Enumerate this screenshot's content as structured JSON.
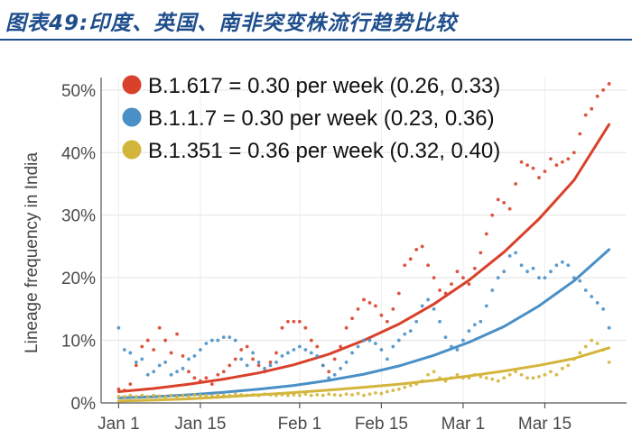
{
  "header": {
    "title": "图表49:印度、英国、南非突变株流行趋势比较"
  },
  "chart_data": {
    "type": "scatter",
    "title": "",
    "xlabel": "",
    "ylabel": "Lineage frequency in India",
    "x_unit": "day index (Jan 1 = 0)",
    "xlim": [
      -3,
      87
    ],
    "ylim": [
      0,
      0.52
    ],
    "x_ticks": [
      {
        "value": 0,
        "label": "Jan 1"
      },
      {
        "value": 14,
        "label": "Jan 15"
      },
      {
        "value": 31,
        "label": "Feb 1"
      },
      {
        "value": 45,
        "label": "Feb 15"
      },
      {
        "value": 59,
        "label": "Mar 1"
      },
      {
        "value": 73,
        "label": "Mar 15"
      }
    ],
    "y_ticks": [
      {
        "value": 0,
        "label": "0%"
      },
      {
        "value": 0.1,
        "label": "10%"
      },
      {
        "value": 0.2,
        "label": "20%"
      },
      {
        "value": 0.3,
        "label": "30%"
      },
      {
        "value": 0.4,
        "label": "40%"
      },
      {
        "value": 0.5,
        "label": "50%"
      }
    ],
    "grid": true,
    "legend_position": "top-left",
    "series": [
      {
        "name": "B.1.617 = 0.30 per week (0.26, 0.33)",
        "color": "#d9412b",
        "fit": [
          [
            0,
            0.018
          ],
          [
            6,
            0.023
          ],
          [
            12,
            0.03
          ],
          [
            18,
            0.038
          ],
          [
            24,
            0.048
          ],
          [
            30,
            0.061
          ],
          [
            36,
            0.078
          ],
          [
            42,
            0.1
          ],
          [
            48,
            0.126
          ],
          [
            54,
            0.158
          ],
          [
            60,
            0.196
          ],
          [
            66,
            0.241
          ],
          [
            72,
            0.294
          ],
          [
            78,
            0.356
          ],
          [
            84,
            0.445
          ]
        ],
        "points": [
          [
            0,
            0.022
          ],
          [
            1,
            0.02
          ],
          [
            2,
            0.03
          ],
          [
            3,
            0.06
          ],
          [
            4,
            0.09
          ],
          [
            5,
            0.1
          ],
          [
            6,
            0.085
          ],
          [
            7,
            0.12
          ],
          [
            8,
            0.1
          ],
          [
            9,
            0.08
          ],
          [
            10,
            0.11
          ],
          [
            11,
            0.075
          ],
          [
            12,
            0.05
          ],
          [
            13,
            0.04
          ],
          [
            14,
            0.035
          ],
          [
            15,
            0.04
          ],
          [
            16,
            0.03
          ],
          [
            17,
            0.045
          ],
          [
            18,
            0.05
          ],
          [
            19,
            0.06
          ],
          [
            20,
            0.07
          ],
          [
            21,
            0.085
          ],
          [
            22,
            0.09
          ],
          [
            23,
            0.07
          ],
          [
            24,
            0.06
          ],
          [
            25,
            0.05
          ],
          [
            26,
            0.065
          ],
          [
            27,
            0.08
          ],
          [
            28,
            0.12
          ],
          [
            29,
            0.13
          ],
          [
            30,
            0.13
          ],
          [
            31,
            0.13
          ],
          [
            32,
            0.12
          ],
          [
            33,
            0.1
          ],
          [
            34,
            0.09
          ],
          [
            35,
            0.06
          ],
          [
            36,
            0.05
          ],
          [
            37,
            0.07
          ],
          [
            38,
            0.09
          ],
          [
            39,
            0.12
          ],
          [
            40,
            0.135
          ],
          [
            41,
            0.15
          ],
          [
            42,
            0.165
          ],
          [
            43,
            0.16
          ],
          [
            44,
            0.155
          ],
          [
            45,
            0.14
          ],
          [
            46,
            0.13
          ],
          [
            47,
            0.15
          ],
          [
            48,
            0.175
          ],
          [
            49,
            0.22
          ],
          [
            50,
            0.23
          ],
          [
            51,
            0.245
          ],
          [
            52,
            0.25
          ],
          [
            53,
            0.22
          ],
          [
            54,
            0.2
          ],
          [
            55,
            0.18
          ],
          [
            56,
            0.175
          ],
          [
            57,
            0.19
          ],
          [
            58,
            0.21
          ],
          [
            59,
            0.2
          ],
          [
            60,
            0.19
          ],
          [
            61,
            0.215
          ],
          [
            62,
            0.24
          ],
          [
            63,
            0.27
          ],
          [
            64,
            0.3
          ],
          [
            65,
            0.325
          ],
          [
            66,
            0.32
          ],
          [
            67,
            0.31
          ],
          [
            68,
            0.35
          ],
          [
            69,
            0.385
          ],
          [
            70,
            0.38
          ],
          [
            71,
            0.375
          ],
          [
            72,
            0.36
          ],
          [
            73,
            0.37
          ],
          [
            74,
            0.39
          ],
          [
            75,
            0.38
          ],
          [
            76,
            0.385
          ],
          [
            77,
            0.39
          ],
          [
            78,
            0.4
          ],
          [
            79,
            0.43
          ],
          [
            80,
            0.46
          ],
          [
            81,
            0.47
          ],
          [
            82,
            0.49
          ],
          [
            83,
            0.5
          ],
          [
            84,
            0.51
          ]
        ]
      },
      {
        "name": "B.1.1.7 = 0.30 per week (0.23, 0.36)",
        "color": "#4a90c6",
        "fit": [
          [
            0,
            0.008
          ],
          [
            6,
            0.01
          ],
          [
            12,
            0.013
          ],
          [
            18,
            0.017
          ],
          [
            24,
            0.022
          ],
          [
            30,
            0.028
          ],
          [
            36,
            0.036
          ],
          [
            42,
            0.046
          ],
          [
            48,
            0.059
          ],
          [
            54,
            0.076
          ],
          [
            60,
            0.097
          ],
          [
            66,
            0.122
          ],
          [
            72,
            0.155
          ],
          [
            78,
            0.195
          ],
          [
            84,
            0.245
          ]
        ],
        "points": [
          [
            0,
            0.12
          ],
          [
            1,
            0.085
          ],
          [
            2,
            0.08
          ],
          [
            3,
            0.065
          ],
          [
            4,
            0.07
          ],
          [
            5,
            0.045
          ],
          [
            6,
            0.05
          ],
          [
            7,
            0.06
          ],
          [
            8,
            0.065
          ],
          [
            9,
            0.045
          ],
          [
            10,
            0.05
          ],
          [
            11,
            0.055
          ],
          [
            12,
            0.07
          ],
          [
            13,
            0.075
          ],
          [
            14,
            0.085
          ],
          [
            15,
            0.095
          ],
          [
            16,
            0.1
          ],
          [
            17,
            0.1
          ],
          [
            18,
            0.105
          ],
          [
            19,
            0.105
          ],
          [
            20,
            0.1
          ],
          [
            21,
            0.07
          ],
          [
            22,
            0.06
          ],
          [
            23,
            0.08
          ],
          [
            24,
            0.065
          ],
          [
            25,
            0.055
          ],
          [
            26,
            0.06
          ],
          [
            27,
            0.065
          ],
          [
            28,
            0.075
          ],
          [
            29,
            0.08
          ],
          [
            30,
            0.085
          ],
          [
            31,
            0.09
          ],
          [
            32,
            0.085
          ],
          [
            33,
            0.08
          ],
          [
            34,
            0.075
          ],
          [
            35,
            0.06
          ],
          [
            36,
            0.04
          ],
          [
            37,
            0.045
          ],
          [
            38,
            0.055
          ],
          [
            39,
            0.065
          ],
          [
            40,
            0.08
          ],
          [
            41,
            0.09
          ],
          [
            42,
            0.1
          ],
          [
            43,
            0.1
          ],
          [
            44,
            0.095
          ],
          [
            45,
            0.085
          ],
          [
            46,
            0.07
          ],
          [
            47,
            0.09
          ],
          [
            48,
            0.1
          ],
          [
            49,
            0.11
          ],
          [
            50,
            0.115
          ],
          [
            51,
            0.13
          ],
          [
            52,
            0.155
          ],
          [
            53,
            0.165
          ],
          [
            54,
            0.15
          ],
          [
            55,
            0.13
          ],
          [
            56,
            0.105
          ],
          [
            57,
            0.09
          ],
          [
            58,
            0.085
          ],
          [
            59,
            0.1
          ],
          [
            60,
            0.115
          ],
          [
            61,
            0.125
          ],
          [
            62,
            0.13
          ],
          [
            63,
            0.155
          ],
          [
            64,
            0.18
          ],
          [
            65,
            0.2
          ],
          [
            66,
            0.21
          ],
          [
            67,
            0.235
          ],
          [
            68,
            0.24
          ],
          [
            69,
            0.22
          ],
          [
            70,
            0.21
          ],
          [
            71,
            0.215
          ],
          [
            72,
            0.2
          ],
          [
            73,
            0.2
          ],
          [
            74,
            0.21
          ],
          [
            75,
            0.22
          ],
          [
            76,
            0.225
          ],
          [
            77,
            0.22
          ],
          [
            78,
            0.2
          ],
          [
            79,
            0.195
          ],
          [
            80,
            0.18
          ],
          [
            81,
            0.17
          ],
          [
            82,
            0.16
          ],
          [
            83,
            0.15
          ],
          [
            84,
            0.12
          ]
        ]
      },
      {
        "name": "B.1.351 = 0.36 per week (0.32, 0.40)",
        "color": "#d4b53c",
        "fit": [
          [
            0,
            0.003
          ],
          [
            6,
            0.0045
          ],
          [
            12,
            0.0065
          ],
          [
            18,
            0.0095
          ],
          [
            24,
            0.013
          ],
          [
            30,
            0.0165
          ],
          [
            36,
            0.0205
          ],
          [
            42,
            0.025
          ],
          [
            48,
            0.03
          ],
          [
            54,
            0.036
          ],
          [
            60,
            0.043
          ],
          [
            66,
            0.051
          ],
          [
            72,
            0.06
          ],
          [
            78,
            0.071
          ],
          [
            84,
            0.088
          ]
        ],
        "points": [
          [
            0,
            0.01
          ],
          [
            1,
            0.01
          ],
          [
            2,
            0.012
          ],
          [
            3,
            0.01
          ],
          [
            4,
            0.012
          ],
          [
            5,
            0.01
          ],
          [
            6,
            0.012
          ],
          [
            7,
            0.011
          ],
          [
            8,
            0.01
          ],
          [
            9,
            0.012
          ],
          [
            10,
            0.01
          ],
          [
            11,
            0.012
          ],
          [
            12,
            0.011
          ],
          [
            13,
            0.013
          ],
          [
            14,
            0.012
          ],
          [
            15,
            0.012
          ],
          [
            16,
            0.011
          ],
          [
            17,
            0.013
          ],
          [
            18,
            0.012
          ],
          [
            19,
            0.012
          ],
          [
            20,
            0.014
          ],
          [
            21,
            0.013
          ],
          [
            22,
            0.012
          ],
          [
            23,
            0.013
          ],
          [
            24,
            0.012
          ],
          [
            25,
            0.014
          ],
          [
            26,
            0.013
          ],
          [
            27,
            0.012
          ],
          [
            28,
            0.013
          ],
          [
            29,
            0.012
          ],
          [
            30,
            0.013
          ],
          [
            31,
            0.012
          ],
          [
            32,
            0.014
          ],
          [
            33,
            0.012
          ],
          [
            34,
            0.013
          ],
          [
            35,
            0.012
          ],
          [
            36,
            0.014
          ],
          [
            37,
            0.013
          ],
          [
            38,
            0.012
          ],
          [
            39,
            0.014
          ],
          [
            40,
            0.013
          ],
          [
            41,
            0.015
          ],
          [
            42,
            0.012
          ],
          [
            43,
            0.014
          ],
          [
            44,
            0.016
          ],
          [
            45,
            0.015
          ],
          [
            46,
            0.018
          ],
          [
            47,
            0.02
          ],
          [
            48,
            0.022
          ],
          [
            49,
            0.025
          ],
          [
            50,
            0.028
          ],
          [
            51,
            0.03
          ],
          [
            52,
            0.035
          ],
          [
            53,
            0.045
          ],
          [
            54,
            0.05
          ],
          [
            55,
            0.04
          ],
          [
            56,
            0.035
          ],
          [
            57,
            0.04
          ],
          [
            58,
            0.045
          ],
          [
            59,
            0.04
          ],
          [
            60,
            0.04
          ],
          [
            61,
            0.045
          ],
          [
            62,
            0.042
          ],
          [
            63,
            0.04
          ],
          [
            64,
            0.038
          ],
          [
            65,
            0.035
          ],
          [
            66,
            0.04
          ],
          [
            67,
            0.045
          ],
          [
            68,
            0.05
          ],
          [
            69,
            0.045
          ],
          [
            70,
            0.04
          ],
          [
            71,
            0.04
          ],
          [
            72,
            0.042
          ],
          [
            73,
            0.045
          ],
          [
            74,
            0.05
          ],
          [
            75,
            0.045
          ],
          [
            76,
            0.055
          ],
          [
            77,
            0.06
          ],
          [
            78,
            0.07
          ],
          [
            79,
            0.08
          ],
          [
            80,
            0.09
          ],
          [
            81,
            0.1
          ],
          [
            82,
            0.095
          ],
          [
            83,
            0.085
          ],
          [
            84,
            0.065
          ]
        ]
      }
    ]
  }
}
